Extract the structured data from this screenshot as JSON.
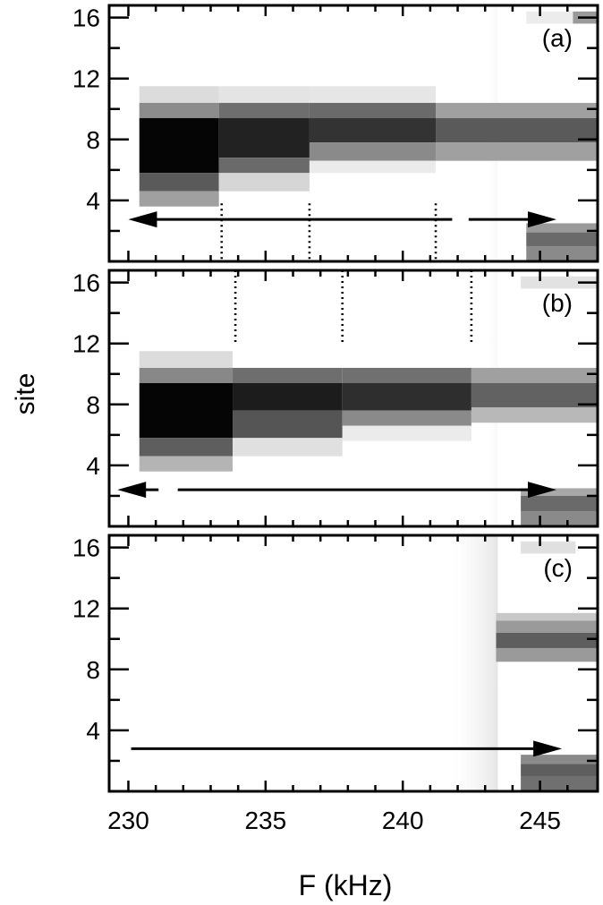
{
  "chart_data": {
    "type": "heatmap",
    "xlabel": "F (kHz)",
    "ylabel": "site",
    "xlim": [
      229.3,
      247.1
    ],
    "x_ticks": [
      "230",
      "235",
      "240",
      "245"
    ],
    "y_ticks": [
      "4",
      "8",
      "12",
      "16"
    ],
    "shading": "darker gray = higher occupation",
    "panels": [
      {
        "label": "(a)",
        "ylim": [
          0,
          16.8
        ],
        "segments": [
          {
            "x0": 230.4,
            "x1": 233.3,
            "rows": [
              {
                "y0": 9.0,
                "y1": 11.5,
                "shade": "#dcdcdc"
              },
              {
                "y0": 9.4,
                "y1": 10.4,
                "shade": "#8c8c8c"
              },
              {
                "y0": 5.8,
                "y1": 9.4,
                "shade": "#050505"
              },
              {
                "y0": 4.6,
                "y1": 5.8,
                "shade": "#5a5a5a"
              },
              {
                "y0": 3.6,
                "y1": 4.6,
                "shade": "#a0a0a0"
              }
            ]
          },
          {
            "x0": 233.3,
            "x1": 236.6,
            "rows": [
              {
                "y0": 10.4,
                "y1": 11.5,
                "shade": "#e4e4e4"
              },
              {
                "y0": 9.4,
                "y1": 10.4,
                "shade": "#6e6e6e"
              },
              {
                "y0": 6.8,
                "y1": 9.4,
                "shade": "#222222"
              },
              {
                "y0": 5.8,
                "y1": 6.8,
                "shade": "#6a6a6a"
              },
              {
                "y0": 4.6,
                "y1": 5.8,
                "shade": "#d6d6d6"
              }
            ]
          },
          {
            "x0": 236.6,
            "x1": 241.2,
            "rows": [
              {
                "y0": 10.4,
                "y1": 11.5,
                "shade": "#e6e6e6"
              },
              {
                "y0": 9.4,
                "y1": 10.4,
                "shade": "#6a6a6a"
              },
              {
                "y0": 7.8,
                "y1": 9.4,
                "shade": "#333333"
              },
              {
                "y0": 6.6,
                "y1": 7.8,
                "shade": "#8a8a8a"
              },
              {
                "y0": 5.8,
                "y1": 6.6,
                "shade": "#ebebeb"
              }
            ]
          },
          {
            "x0": 241.2,
            "x1": 247.1,
            "rows": [
              {
                "y0": 9.4,
                "y1": 10.4,
                "shade": "#a0a0a0"
              },
              {
                "y0": 7.8,
                "y1": 9.4,
                "shade": "#5a5a5a"
              },
              {
                "y0": 6.6,
                "y1": 7.8,
                "shade": "#a0a0a0"
              }
            ]
          },
          {
            "x0": 244.5,
            "x1": 247.1,
            "rows": [
              {
                "y0": 1.9,
                "y1": 2.5,
                "shade": "#9a9a9a"
              },
              {
                "y0": 1.0,
                "y1": 1.9,
                "shade": "#6a6a6a"
              },
              {
                "y0": 0.0,
                "y1": 1.0,
                "shade": "#8a8a8a"
              }
            ]
          },
          {
            "x0": 244.5,
            "x1": 246.2,
            "rows": [
              {
                "y0": 15.6,
                "y1": 16.4,
                "shade": "#ececec"
              }
            ]
          },
          {
            "x0": 246.2,
            "x1": 247.1,
            "rows": [
              {
                "y0": 15.6,
                "y1": 16.4,
                "shade": "#9a9a9a"
              }
            ]
          }
        ],
        "dotted_lines": [
          {
            "x": 233.4,
            "y0": 0.0,
            "y1": 3.8
          },
          {
            "x": 236.6,
            "y0": 0.0,
            "y1": 3.8
          },
          {
            "x": 241.2,
            "y0": 0.0,
            "y1": 3.8
          }
        ],
        "arrow": {
          "y": 2.75,
          "from": 242.4,
          "to": 245.6,
          "left_to": 230.0,
          "left_from": 241.8
        }
      },
      {
        "label": "(b)",
        "ylim": [
          0,
          16.8
        ],
        "segments": [
          {
            "x0": 230.4,
            "x1": 233.8,
            "rows": [
              {
                "y0": 10.4,
                "y1": 11.5,
                "shade": "#dcdcdc"
              },
              {
                "y0": 9.4,
                "y1": 10.4,
                "shade": "#888888"
              },
              {
                "y0": 5.8,
                "y1": 9.4,
                "shade": "#050505"
              },
              {
                "y0": 4.6,
                "y1": 5.8,
                "shade": "#5e5e5e"
              },
              {
                "y0": 3.6,
                "y1": 4.6,
                "shade": "#b4b4b4"
              }
            ]
          },
          {
            "x0": 233.8,
            "x1": 237.8,
            "rows": [
              {
                "y0": 9.4,
                "y1": 10.4,
                "shade": "#6e6e6e"
              },
              {
                "y0": 7.6,
                "y1": 9.4,
                "shade": "#1c1c1c"
              },
              {
                "y0": 5.8,
                "y1": 7.6,
                "shade": "#555555"
              },
              {
                "y0": 4.6,
                "y1": 5.8,
                "shade": "#e0e0e0"
              }
            ]
          },
          {
            "x0": 237.8,
            "x1": 242.5,
            "rows": [
              {
                "y0": 9.4,
                "y1": 10.4,
                "shade": "#707070"
              },
              {
                "y0": 7.6,
                "y1": 9.4,
                "shade": "#2e2e2e"
              },
              {
                "y0": 6.6,
                "y1": 7.6,
                "shade": "#8a8a8a"
              },
              {
                "y0": 5.6,
                "y1": 6.6,
                "shade": "#ebebeb"
              }
            ]
          },
          {
            "x0": 242.5,
            "x1": 247.1,
            "rows": [
              {
                "y0": 9.4,
                "y1": 10.4,
                "shade": "#a0a0a0"
              },
              {
                "y0": 7.8,
                "y1": 9.4,
                "shade": "#626262"
              },
              {
                "y0": 6.8,
                "y1": 7.8,
                "shade": "#b8b8b8"
              }
            ]
          },
          {
            "x0": 244.3,
            "x1": 247.1,
            "rows": [
              {
                "y0": 2.0,
                "y1": 2.5,
                "shade": "#a8a8a8"
              },
              {
                "y0": 1.0,
                "y1": 2.0,
                "shade": "#6a6a6a"
              },
              {
                "y0": 0.0,
                "y1": 1.0,
                "shade": "#8a8a8a"
              }
            ]
          },
          {
            "x0": 244.3,
            "x1": 247.1,
            "rows": [
              {
                "y0": 15.6,
                "y1": 16.4,
                "shade": "#e2e2e2"
              }
            ]
          }
        ],
        "dotted_lines": [
          {
            "x": 233.9,
            "y0": 12.0,
            "y1": 16.8
          },
          {
            "x": 237.8,
            "y0": 12.0,
            "y1": 16.8
          },
          {
            "x": 242.5,
            "y0": 12.0,
            "y1": 16.8
          }
        ],
        "arrow": {
          "y": 2.4,
          "from": 231.8,
          "to": 245.6,
          "left_to": 229.6,
          "left_from": 231.1
        }
      },
      {
        "label": "(c)",
        "ylim": [
          0,
          16.8
        ],
        "segments": [
          {
            "x0": 243.4,
            "x1": 247.1,
            "rows": [
              {
                "y0": 11.2,
                "y1": 11.7,
                "shade": "#c8c8c8"
              },
              {
                "y0": 10.4,
                "y1": 11.2,
                "shade": "#9a9a9a"
              },
              {
                "y0": 9.4,
                "y1": 10.4,
                "shade": "#5e5e5e"
              },
              {
                "y0": 8.5,
                "y1": 9.4,
                "shade": "#9a9a9a"
              }
            ]
          },
          {
            "x0": 244.3,
            "x1": 247.1,
            "rows": [
              {
                "y0": 1.8,
                "y1": 2.4,
                "shade": "#8a8a8a"
              },
              {
                "y0": 1.0,
                "y1": 1.8,
                "shade": "#5e5e5e"
              },
              {
                "y0": 0.0,
                "y1": 1.0,
                "shade": "#707070"
              }
            ]
          },
          {
            "x0": 244.3,
            "x1": 246.3,
            "rows": [
              {
                "y0": 15.6,
                "y1": 16.4,
                "shade": "#e0e0e0"
              }
            ]
          }
        ],
        "dotted_lines": [],
        "arrow": {
          "y": 2.8,
          "from": 230.1,
          "to": 245.8
        }
      }
    ]
  }
}
